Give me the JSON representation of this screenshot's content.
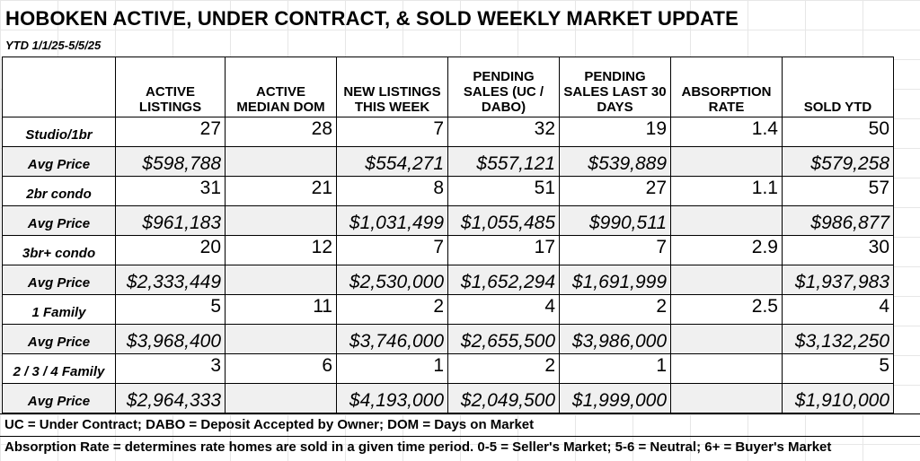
{
  "title": "HOBOKEN ACTIVE, UNDER CONTRACT, & SOLD WEEKLY MARKET UPDATE",
  "subtitle": "YTD 1/1/25-5/5/25",
  "columns": [
    "",
    "ACTIVE LISTINGS",
    "ACTIVE MEDIAN DOM",
    "NEW LISTINGS THIS WEEK",
    "PENDING SALES (UC / DABO)",
    "PENDING SALES LAST 30 DAYS",
    "ABSORPTION RATE",
    "SOLD YTD"
  ],
  "rows": [
    {
      "label": "Studio/1br",
      "cells": [
        "27",
        "28",
        "7",
        "32",
        "19",
        "1.4",
        "50"
      ]
    },
    {
      "label": "Avg Price",
      "cells": [
        "$598,788",
        "",
        "$554,271",
        "$557,121",
        "$539,889",
        "",
        "$579,258"
      ]
    },
    {
      "label": "2br condo",
      "cells": [
        "31",
        "21",
        "8",
        "51",
        "27",
        "1.1",
        "57"
      ]
    },
    {
      "label": "Avg Price",
      "cells": [
        "$961,183",
        "",
        "$1,031,499",
        "$1,055,485",
        "$990,511",
        "",
        "$986,877"
      ]
    },
    {
      "label": "3br+ condo",
      "cells": [
        "20",
        "12",
        "7",
        "17",
        "7",
        "2.9",
        "30"
      ]
    },
    {
      "label": "Avg Price",
      "cells": [
        "$2,333,449",
        "",
        "$2,530,000",
        "$1,652,294",
        "$1,691,999",
        "",
        "$1,937,983"
      ]
    },
    {
      "label": "1 Family",
      "cells": [
        "5",
        "11",
        "2",
        "4",
        "2",
        "2.5",
        "4"
      ]
    },
    {
      "label": "Avg Price",
      "cells": [
        "$3,968,400",
        "",
        "$3,746,000",
        "$2,655,500",
        "$3,986,000",
        "",
        "$3,132,250"
      ]
    },
    {
      "label": "2 / 3 / 4 Family",
      "cells": [
        "3",
        "6",
        "1",
        "2",
        "1",
        "",
        "5"
      ]
    },
    {
      "label": "Avg Price",
      "cells": [
        "$2,964,333",
        "",
        "$4,193,000",
        "$2,049,500",
        "$1,999,000",
        "",
        "$1,910,000"
      ]
    }
  ],
  "footnotes": {
    "line1": "UC = Under Contract; DABO = Deposit Accepted by Owner; DOM = Days on Market",
    "line2": "Absorption Rate = determines rate homes are sold in a given time period.  0-5 = Seller's Market; 5-6 = Neutral; 6+ = Buyer's Market"
  }
}
